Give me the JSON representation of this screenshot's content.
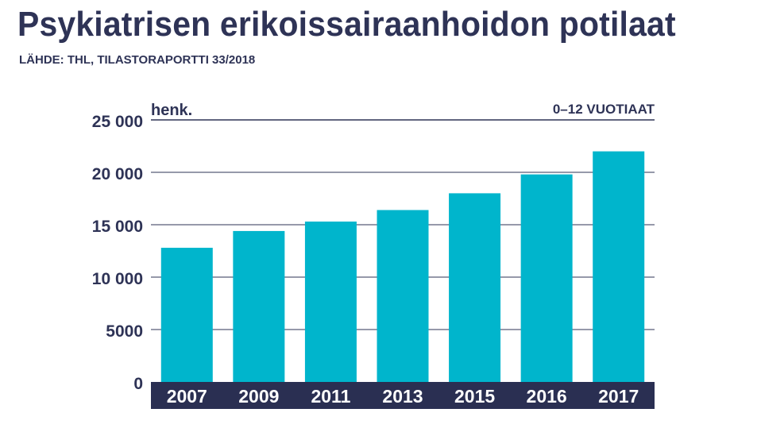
{
  "header": {
    "title": "Psykiatrisen erikoissairaanhoidon potilaat",
    "source": "LÄHDE: THL, TILASTORAPORTTI 33/2018"
  },
  "chart_data": {
    "type": "bar",
    "unit_label": "henk.",
    "note": "0–12 VUOTIAAT",
    "categories": [
      "2007",
      "2009",
      "2011",
      "2013",
      "2015",
      "2016",
      "2017"
    ],
    "values": [
      12800,
      14400,
      15300,
      16400,
      18000,
      19800,
      22000
    ],
    "ylim": [
      0,
      25000
    ],
    "yticks": [
      0,
      5000,
      10000,
      15000,
      20000,
      25000
    ],
    "ytick_labels": [
      "0",
      "5000",
      "10 000",
      "15 000",
      "20 000",
      "25 000"
    ],
    "grid": true,
    "colors": {
      "bar": "#00b5cc",
      "grid": "#2e3356",
      "axis_band": "#2a2f52",
      "text": "#2e3356"
    }
  }
}
